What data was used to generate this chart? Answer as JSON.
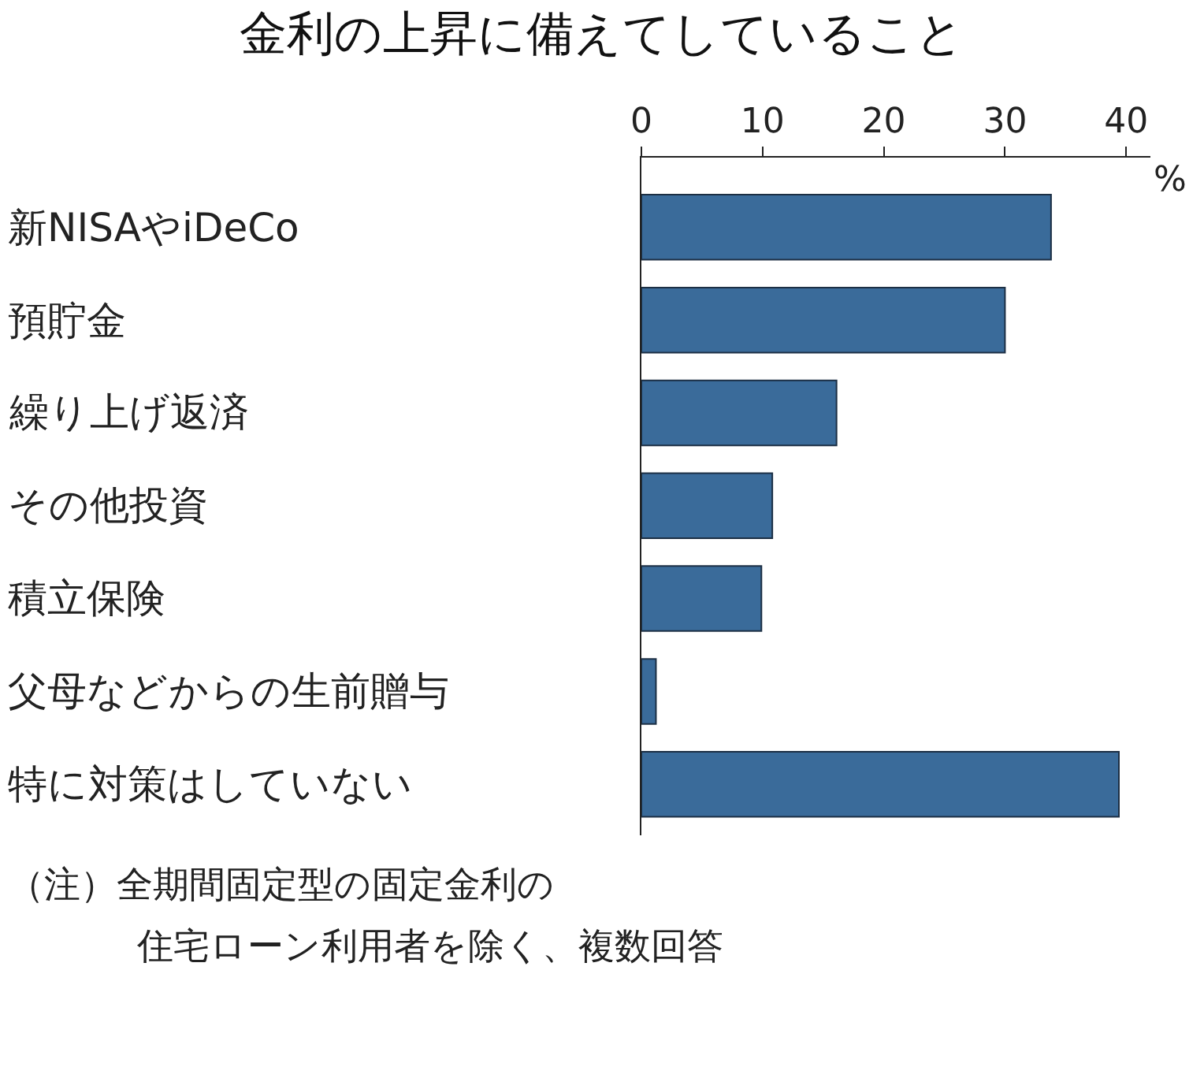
{
  "chart_data": {
    "type": "bar",
    "orientation": "horizontal",
    "title": "金利の上昇に備えてしていること",
    "xlabel": "%",
    "categories": [
      "新NISAやiDeCo",
      "預貯金",
      "繰り上げ返済",
      "その他投資",
      "積立保険",
      "父母などからの生前贈与",
      "特に対策はしていない"
    ],
    "values": [
      33.8,
      30.0,
      16.1,
      10.8,
      9.9,
      1.2,
      39.4
    ],
    "color": "#3a6b9a",
    "xlim": [
      0,
      42
    ],
    "xticks": [
      0,
      10,
      20,
      30,
      40
    ],
    "annotations": [
      "（注）全期間固定型の固定金利の",
      "住宅ローン利用者を除く、複数回答"
    ]
  }
}
